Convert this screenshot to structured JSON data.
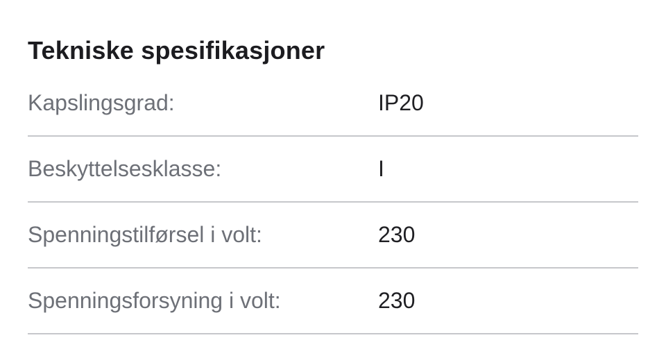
{
  "title": "Tekniske spesifikasjoner",
  "specs": [
    {
      "label": "Kapslingsgrad:",
      "value": "IP20"
    },
    {
      "label": "Beskyttelsesklasse:",
      "value": "I"
    },
    {
      "label": "Spenningstilførsel i volt:",
      "value": "230"
    },
    {
      "label": "Spenningsforsyning i volt:",
      "value": "230"
    }
  ]
}
